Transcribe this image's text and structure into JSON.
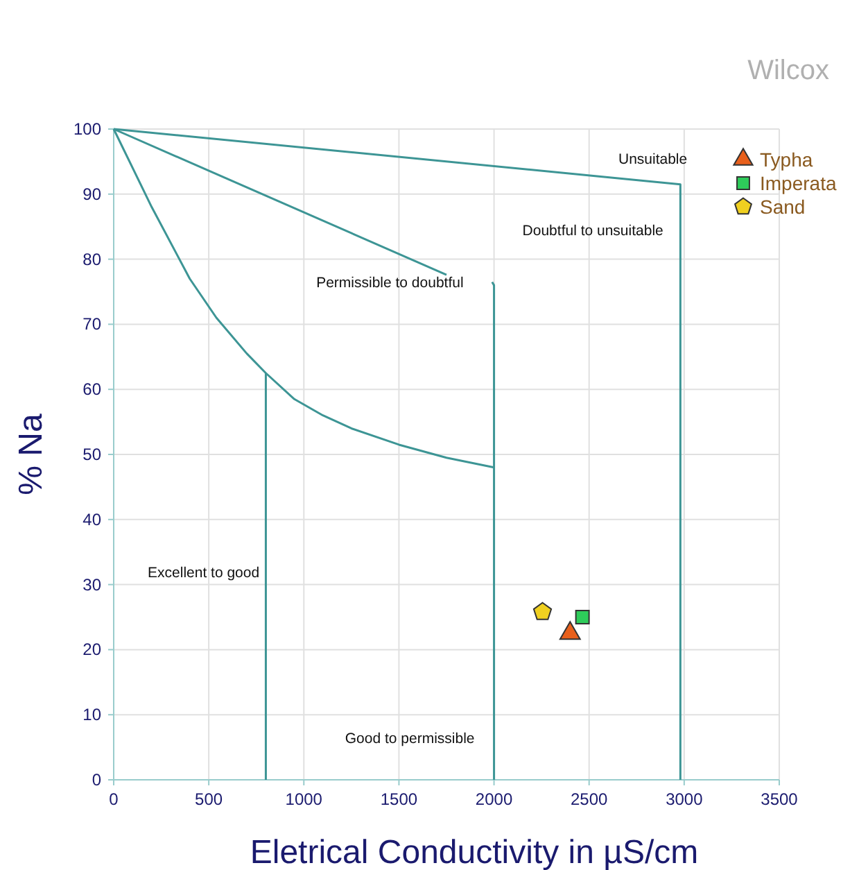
{
  "chart_data": {
    "type": "scatter",
    "title": "Wilcox",
    "xlabel": "Eletrical Conductivity in µS/cm",
    "ylabel": "% Na",
    "xlim": [
      0,
      3500
    ],
    "ylim": [
      0,
      100
    ],
    "xticks": [
      0,
      500,
      1000,
      1500,
      2000,
      2500,
      3000,
      3500
    ],
    "yticks": [
      0,
      10,
      20,
      30,
      40,
      50,
      60,
      70,
      80,
      90,
      100
    ],
    "grid": true,
    "legend": "top right",
    "series": [
      {
        "type": "line",
        "color": "#3d9595",
        "marker": "none",
        "x": [
          0,
          200,
          400,
          540,
          700,
          800,
          950,
          1100,
          1250,
          1500,
          1750,
          2000
        ],
        "values": [
          100,
          88,
          77,
          71,
          65.5,
          62.5,
          58.5,
          56,
          54,
          51.5,
          49.5,
          48
        ]
      },
      {
        "type": "line",
        "color": "#3d9595",
        "marker": "none",
        "x": [
          800,
          800
        ],
        "values": [
          62.5,
          0
        ]
      },
      {
        "type": "line",
        "color": "#3d9595",
        "marker": "none",
        "x": [
          0,
          1750
        ],
        "values": [
          100,
          77.6
        ]
      },
      {
        "type": "line",
        "color": "#3d9595",
        "marker": "none",
        "x": [
          1990,
          2000,
          2000
        ],
        "values": [
          76.5,
          76,
          0
        ]
      },
      {
        "type": "line",
        "color": "#3d9595",
        "marker": "none",
        "x": [
          0,
          2980,
          2980
        ],
        "values": [
          100,
          91.5,
          0
        ]
      },
      {
        "name": "Typha",
        "color": "#e8601c",
        "marker": "triangle",
        "x": [
          2400
        ],
        "values": [
          22.5
        ]
      },
      {
        "name": "Imperata",
        "color": "#2ecc5a",
        "marker": "square",
        "x": [
          2465
        ],
        "values": [
          25
        ]
      },
      {
        "name": "Sand",
        "color": "#f0d020",
        "x": [
          2255
        ],
        "values": [
          25.8
        ]
      }
    ],
    "annotations": [
      "Unsuitable",
      "Doubtful to unsuitable",
      "Permissible to doubtful",
      "Excellent to good",
      "Good to permissible"
    ]
  }
}
